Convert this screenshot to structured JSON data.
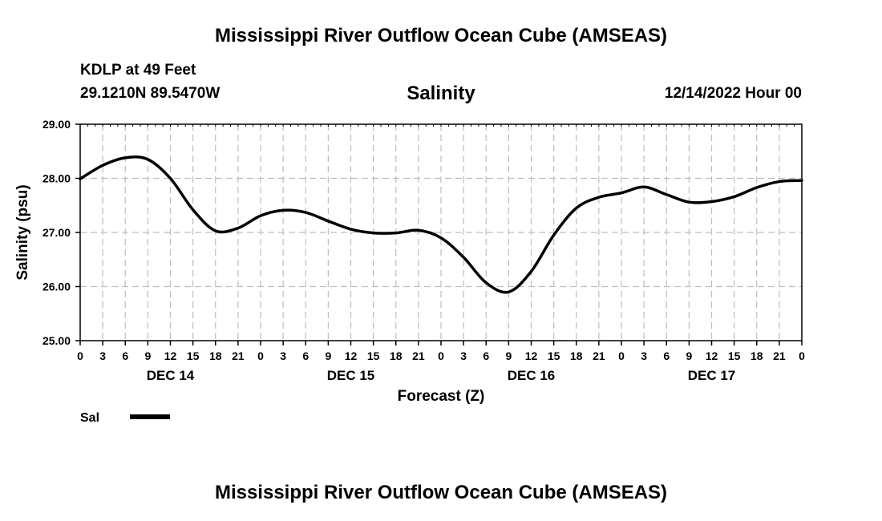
{
  "page": {
    "title": "Mississippi River Outflow Ocean Cube (AMSEAS)",
    "footer_title": "Mississippi River Outflow Ocean Cube (AMSEAS)",
    "station": "KDLP at 49 Feet",
    "coordinates": "29.1210N  89.5470W",
    "datetime": "12/14/2022 Hour 00"
  },
  "chart_data": {
    "type": "line",
    "title": "Salinity",
    "xlabel": "Forecast (Z)",
    "ylabel": "Salinity (psu)",
    "ylim": [
      25,
      29
    ],
    "xlim": [
      0,
      96
    ],
    "grid": true,
    "yticks": [
      "25.00",
      "26.00",
      "27.00",
      "28.00",
      "29.00"
    ],
    "xtick_hours": [
      0,
      3,
      6,
      9,
      12,
      15,
      18,
      21,
      24,
      27,
      30,
      33,
      36,
      39,
      42,
      45,
      48,
      51,
      54,
      57,
      60,
      63,
      66,
      69,
      72,
      75,
      78,
      81,
      84,
      87,
      90,
      93,
      96
    ],
    "xtick_labels": [
      "0",
      "3",
      "6",
      "9",
      "12",
      "15",
      "18",
      "21",
      "0",
      "3",
      "6",
      "9",
      "12",
      "15",
      "18",
      "21",
      "0",
      "3",
      "6",
      "9",
      "12",
      "15",
      "18",
      "21",
      "0",
      "3",
      "6",
      "9",
      "12",
      "15",
      "18",
      "21",
      "0"
    ],
    "day_labels": [
      {
        "label": "DEC 14",
        "hour": 12
      },
      {
        "label": "DEC 15",
        "hour": 36
      },
      {
        "label": "DEC 16",
        "hour": 60
      },
      {
        "label": "DEC 17",
        "hour": 84
      }
    ],
    "legend": {
      "position": "bottom-left",
      "label": "Sal"
    },
    "series": [
      {
        "name": "Sal",
        "color": "#000000",
        "x": [
          0,
          3,
          6,
          9,
          12,
          15,
          18,
          21,
          24,
          27,
          30,
          33,
          36,
          39,
          42,
          45,
          48,
          51,
          54,
          57,
          60,
          63,
          66,
          69,
          72,
          75,
          78,
          81,
          84,
          87,
          90,
          93,
          96
        ],
        "values": [
          27.99,
          28.24,
          28.38,
          28.35,
          28.0,
          27.42,
          27.03,
          27.08,
          27.31,
          27.41,
          27.37,
          27.21,
          27.06,
          26.99,
          26.99,
          27.04,
          26.9,
          26.54,
          26.07,
          25.9,
          26.28,
          26.95,
          27.45,
          27.65,
          27.73,
          27.84,
          27.7,
          27.56,
          27.57,
          27.66,
          27.83,
          27.94,
          27.96
        ]
      }
    ]
  }
}
